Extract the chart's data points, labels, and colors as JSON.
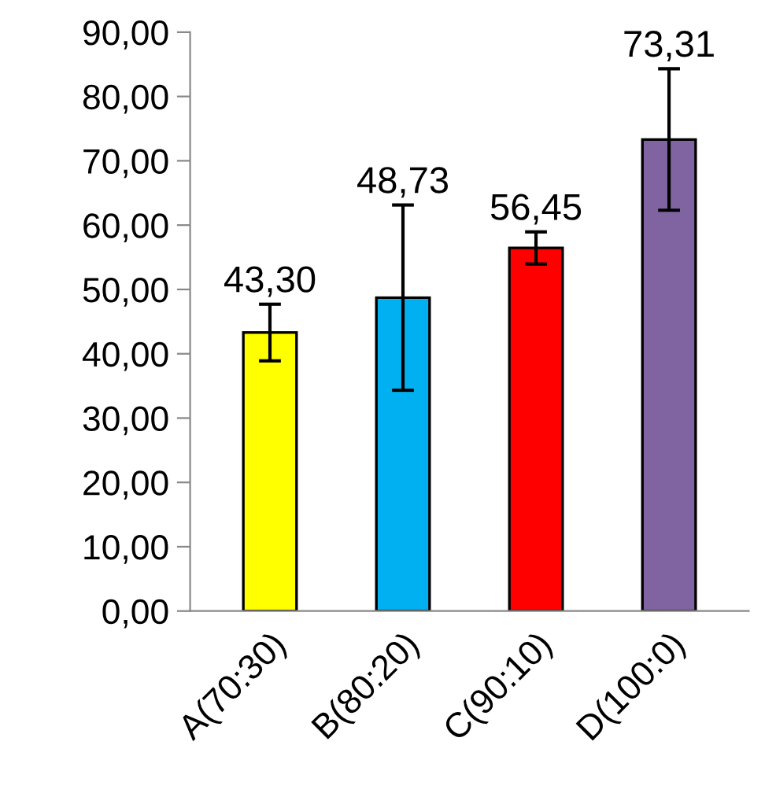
{
  "chart_data": {
    "type": "bar",
    "categories": [
      "A(70:30)",
      "B(80:20)",
      "C(90:10)",
      "D(100:0)"
    ],
    "values": [
      43.3,
      48.73,
      56.45,
      73.31
    ],
    "colors": [
      "#ffff00",
      "#00b0f0",
      "#ff0000",
      "#8064a2"
    ],
    "errors": [
      4.4,
      14.4,
      2.5,
      11.0
    ],
    "value_labels": [
      "43,30",
      "48,73",
      "56,45",
      "73,31"
    ],
    "ylim": [
      0,
      90
    ],
    "yticks": [
      {
        "value": 0,
        "label": "0,00"
      },
      {
        "value": 10,
        "label": "10,00"
      },
      {
        "value": 20,
        "label": "20,00"
      },
      {
        "value": 30,
        "label": "30,00"
      },
      {
        "value": 40,
        "label": "40,00"
      },
      {
        "value": 50,
        "label": "50,00"
      },
      {
        "value": 60,
        "label": "60,00"
      },
      {
        "value": 70,
        "label": "70,00"
      },
      {
        "value": 80,
        "label": "80,00"
      },
      {
        "value": 90,
        "label": "90,00"
      }
    ],
    "grid": false
  }
}
